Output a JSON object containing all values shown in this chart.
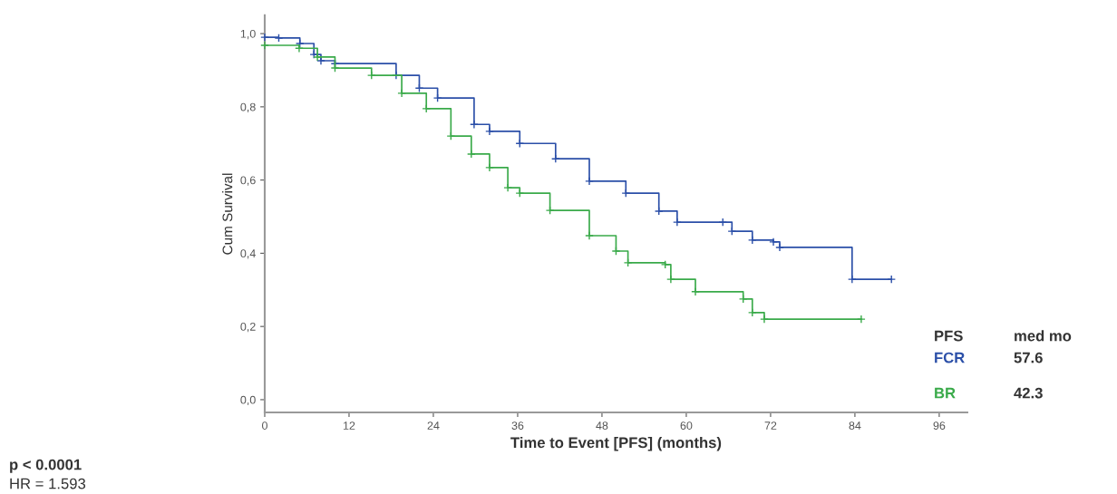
{
  "chart_data": {
    "type": "step",
    "xlabel": "Time to Event [PFS] (months)",
    "ylabel": "Cum Survival",
    "xlim": [
      0,
      100
    ],
    "ylim": [
      -0.035,
      1.05
    ],
    "xticks": [
      0,
      12,
      24,
      36,
      48,
      60,
      72,
      84,
      96
    ],
    "yticks": [
      {
        "value": 0.0,
        "label": "0,0"
      },
      {
        "value": 0.2,
        "label": "0,2"
      },
      {
        "value": 0.4,
        "label": "0,4"
      },
      {
        "value": 0.6,
        "label": "0,6"
      },
      {
        "value": 0.8,
        "label": "0,8"
      },
      {
        "value": 1.0,
        "label": "1,0"
      }
    ],
    "grid": false,
    "marker": "cross",
    "line_style": "solid",
    "series": [
      {
        "name": "FCR",
        "color": "#2b4fa8",
        "x": [
          0,
          2,
          5,
          7,
          8,
          10,
          18.7,
          22,
          24.6,
          29.8,
          32,
          36.3,
          41.4,
          46.2,
          51.4,
          56.1,
          58.7,
          65.2,
          66.5,
          69.4,
          72.4,
          73.3,
          83.6,
          89.2
        ],
        "values": [
          0.99,
          0.988,
          0.973,
          0.943,
          0.926,
          0.918,
          0.886,
          0.851,
          0.824,
          0.752,
          0.733,
          0.7,
          0.658,
          0.597,
          0.564,
          0.515,
          0.485,
          0.485,
          0.46,
          0.436,
          0.431,
          0.416,
          0.329,
          0.329
        ]
      },
      {
        "name": "BR",
        "color": "#3aaa4a",
        "x": [
          0,
          4.9,
          7.5,
          10,
          15.2,
          19.5,
          23,
          26.5,
          29.4,
          32,
          34.6,
          36.3,
          40.6,
          46.2,
          50,
          51.7,
          57,
          57.8,
          61.3,
          68.1,
          69.4,
          71.1,
          84.9
        ],
        "values": [
          0.968,
          0.96,
          0.936,
          0.906,
          0.886,
          0.837,
          0.795,
          0.72,
          0.671,
          0.634,
          0.579,
          0.564,
          0.517,
          0.448,
          0.406,
          0.374,
          0.369,
          0.329,
          0.295,
          0.275,
          0.238,
          0.22,
          0.22
        ]
      }
    ],
    "legend": "right",
    "annotations": [
      "PFS",
      "med mo",
      "57.6",
      "42.3",
      "p < 0.0001",
      "HR = 1.593"
    ]
  }
}
